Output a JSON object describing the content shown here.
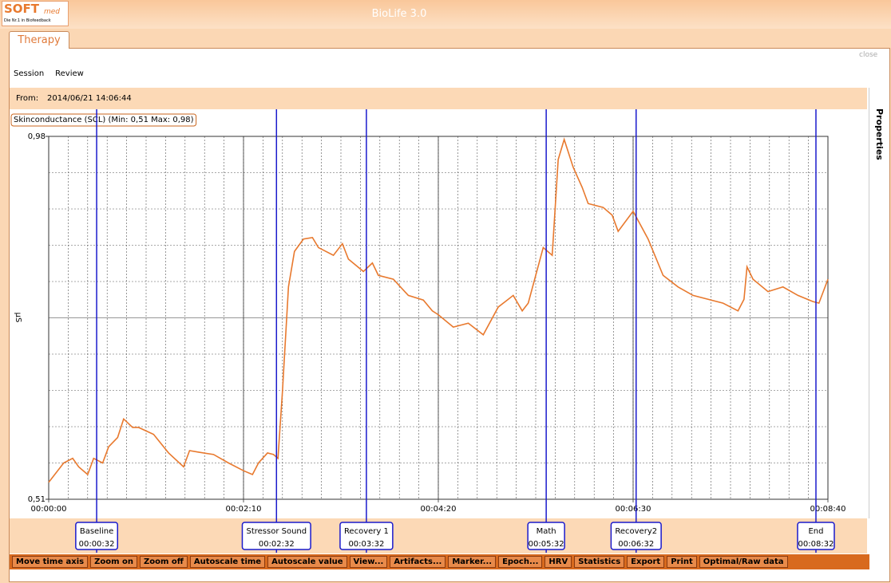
{
  "window": {
    "title": "BioLife 3.0",
    "logo": "SOFT",
    "logo_sub": "med",
    "logo_tagline": "Die Nr.1 in Biofeedback"
  },
  "tab": "Therapy",
  "close": "close",
  "menu": [
    "Session",
    "Review"
  ],
  "from": {
    "label": "From:",
    "value": "2014/06/21 14:06:44"
  },
  "side_panel": "Properties",
  "chart_data": {
    "type": "line",
    "title": "Skinconductance (SCL) (Min: 0,51 Max: 0,98)",
    "y_label": "µS",
    "ylim": [
      0.51,
      0.98
    ],
    "yticks": [
      {
        "value": 0.98,
        "label": "0,98"
      },
      {
        "value": 0.51,
        "label": "0,51"
      }
    ],
    "xlim": [
      0,
      520
    ],
    "xticks": [
      {
        "value": 0,
        "label": "00:00:00"
      },
      {
        "value": 130,
        "label": "00:02:10"
      },
      {
        "value": 260,
        "label": "00:04:20"
      },
      {
        "value": 390,
        "label": "00:06:30"
      },
      {
        "value": 520,
        "label": "00:08:40"
      }
    ],
    "grid": true,
    "x": [
      0,
      10,
      16,
      20,
      26,
      30,
      36,
      40,
      46,
      50,
      56,
      60,
      70,
      80,
      90,
      94,
      100,
      110,
      120,
      130,
      136,
      140,
      146,
      150,
      153,
      156,
      160,
      164,
      170,
      176,
      180,
      190,
      196,
      200,
      210,
      216,
      220,
      230,
      240,
      250,
      256,
      260,
      270,
      280,
      290,
      300,
      310,
      316,
      320,
      330,
      336,
      340,
      344,
      350,
      356,
      360,
      370,
      376,
      380,
      390,
      400,
      410,
      420,
      430,
      440,
      450,
      460,
      464,
      466,
      470,
      480,
      490,
      500,
      510,
      514,
      520
    ],
    "series": [
      {
        "color": "#e8792e",
        "values": [
          0.532,
          0.557,
          0.563,
          0.552,
          0.542,
          0.563,
          0.557,
          0.578,
          0.59,
          0.614,
          0.603,
          0.603,
          0.594,
          0.57,
          0.552,
          0.573,
          0.571,
          0.568,
          0.557,
          0.547,
          0.542,
          0.557,
          0.57,
          0.568,
          0.563,
          0.65,
          0.785,
          0.831,
          0.847,
          0.849,
          0.836,
          0.826,
          0.841,
          0.821,
          0.805,
          0.816,
          0.8,
          0.795,
          0.774,
          0.768,
          0.754,
          0.749,
          0.733,
          0.738,
          0.723,
          0.759,
          0.774,
          0.754,
          0.764,
          0.836,
          0.826,
          0.95,
          0.976,
          0.94,
          0.914,
          0.893,
          0.888,
          0.878,
          0.857,
          0.883,
          0.847,
          0.8,
          0.785,
          0.774,
          0.769,
          0.764,
          0.754,
          0.769,
          0.811,
          0.795,
          0.779,
          0.785,
          0.774,
          0.766,
          0.764,
          0.795
        ]
      }
    ],
    "markers": [
      {
        "name": "Baseline",
        "time": {
          "value": 32,
          "label": "00:00:32"
        }
      },
      {
        "name": "Stressor Sound",
        "time": {
          "value": 152,
          "label": "00:02:32"
        }
      },
      {
        "name": "Recovery 1",
        "time": {
          "value": 212,
          "label": "00:03:32"
        }
      },
      {
        "name": "Math",
        "time": {
          "value": 332,
          "label": "00:05:32"
        }
      },
      {
        "name": "Recovery2",
        "time": {
          "value": 392,
          "label": "00:06:32"
        }
      },
      {
        "name": "End",
        "time": {
          "value": 512,
          "label": "00:08:32"
        }
      }
    ]
  },
  "toolbar": [
    "Move time axis",
    "Zoom on",
    "Zoom off",
    "Autoscale time",
    "Autoscale value",
    "View...",
    "Artifacts...",
    "Marker...",
    "Epoch...",
    "HRV",
    "Statistics",
    "Export",
    "Print",
    "Optimal/Raw data"
  ]
}
